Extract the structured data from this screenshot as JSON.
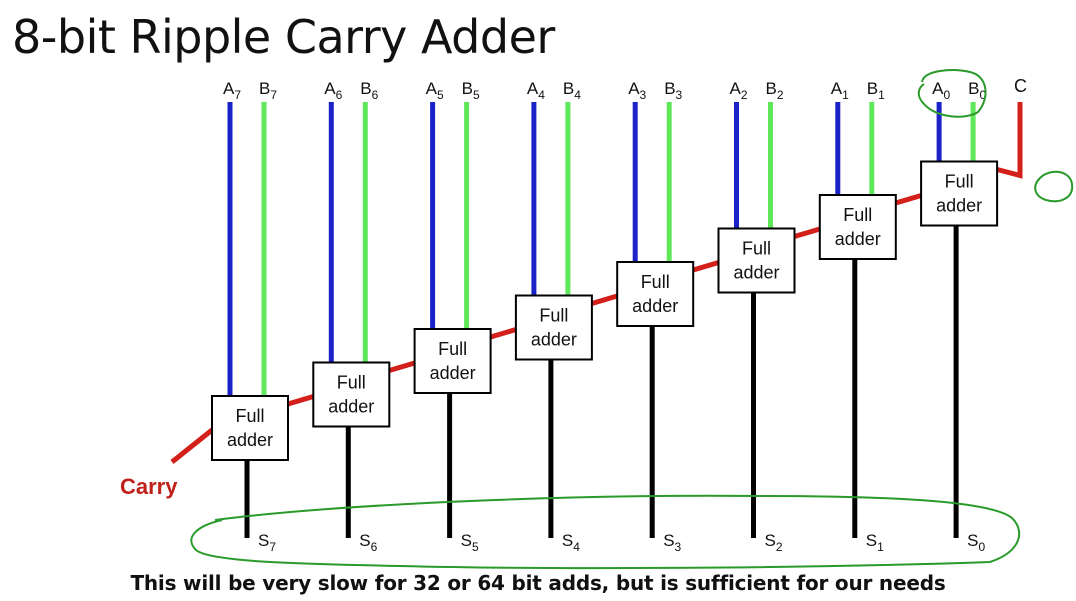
{
  "title": "8-bit Ripple Carry Adder",
  "caption": "This will be very slow for 32 or 64 bit adds, but is sufficient for our needs",
  "carry_label": "Carry",
  "carry_in_label": "C",
  "adder_line1": "Full",
  "adder_line2": "adder",
  "colors": {
    "a_line": "#1a22c8",
    "b_line": "#5ee85a",
    "carry": "#d4201a",
    "sum": "#000000",
    "annotation": "#2a9a2a"
  },
  "stages": [
    {
      "a": "A",
      "a_sub": "7",
      "b": "B",
      "b_sub": "7",
      "s": "S",
      "s_sub": "7"
    },
    {
      "a": "A",
      "a_sub": "6",
      "b": "B",
      "b_sub": "6",
      "s": "S",
      "s_sub": "6"
    },
    {
      "a": "A",
      "a_sub": "5",
      "b": "B",
      "b_sub": "5",
      "s": "S",
      "s_sub": "5"
    },
    {
      "a": "A",
      "a_sub": "4",
      "b": "B",
      "b_sub": "4",
      "s": "S",
      "s_sub": "4"
    },
    {
      "a": "A",
      "a_sub": "3",
      "b": "B",
      "b_sub": "3",
      "s": "S",
      "s_sub": "3"
    },
    {
      "a": "A",
      "a_sub": "2",
      "b": "B",
      "b_sub": "2",
      "s": "S",
      "s_sub": "2"
    },
    {
      "a": "A",
      "a_sub": "1",
      "b": "B",
      "b_sub": "1",
      "s": "S",
      "s_sub": "1"
    },
    {
      "a": "A",
      "a_sub": "0",
      "b": "B",
      "b_sub": "0",
      "s": "S",
      "s_sub": "0"
    }
  ]
}
